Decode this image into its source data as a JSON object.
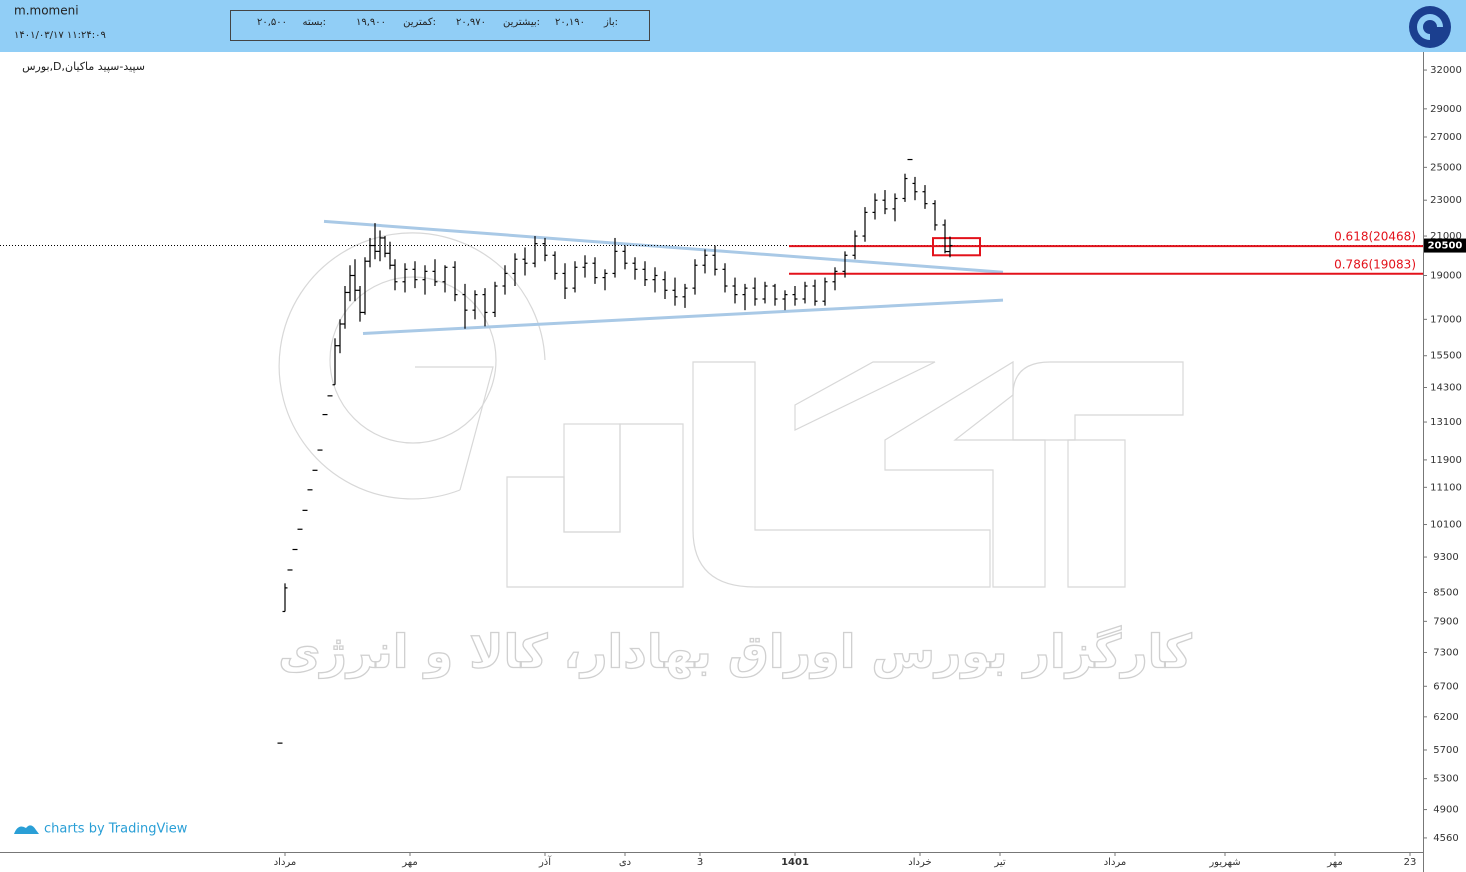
{
  "header": {
    "user": "m.momeni",
    "datetime": "۱۴۰۱/۰۳/۱۷ ۱۱:۲۴:۰۹",
    "open_label": "باز:",
    "open_value": "۲۰,۱۹۰",
    "high_label": "بیشترین:",
    "high_value": "۲۰,۹۷۰",
    "low_label": "کمترین:",
    "low_value": "۱۹,۹۰۰",
    "close_label": "بسته:",
    "close_value": "۲۰,۵۰۰"
  },
  "footer": {
    "credit": "charts by TradingView"
  },
  "chart_data": {
    "type": "ohlc",
    "symbol": "بورس,D,سپید-سپید ماکیان",
    "watermark": "کارگزار بورس اوراق بهادار، کالا و انرژی",
    "log_scale": true,
    "ylim": [
      4400,
      33500
    ],
    "yticks": [
      32000,
      29000,
      27000,
      25000,
      23000,
      21000,
      19000,
      17000,
      15500,
      14300,
      13100,
      11900,
      11100,
      10100,
      9300,
      8500,
      7900,
      7300,
      6700,
      6200,
      5700,
      5300,
      4900,
      4560
    ],
    "xlim": [
      -57,
      227.6
    ],
    "xticks": [
      {
        "value": 0,
        "label": "مرداد"
      },
      {
        "value": 25,
        "label": "مهر"
      },
      {
        "value": 52,
        "label": "آذر"
      },
      {
        "value": 68,
        "label": "دی"
      },
      {
        "value": 83,
        "label": "3"
      },
      {
        "value": 102,
        "label": "1401"
      },
      {
        "value": 127,
        "label": "خرداد"
      },
      {
        "value": 143,
        "label": "تیر"
      },
      {
        "value": 166,
        "label": "مرداد"
      },
      {
        "value": 188,
        "label": "شهریور"
      },
      {
        "value": 210,
        "label": "مهر"
      },
      {
        "value": 225,
        "label": "23"
      }
    ],
    "series": [
      {
        "color": "#000000",
        "x": [
          -1,
          0,
          1,
          2,
          3,
          4,
          5,
          6,
          7,
          8,
          9,
          10,
          11,
          12,
          13,
          14,
          15,
          16,
          17,
          18,
          19,
          20,
          21,
          22,
          24,
          26,
          28,
          30,
          32,
          34,
          36,
          38,
          40,
          42,
          44,
          46,
          48,
          50,
          52,
          54,
          56,
          58,
          60,
          62,
          64,
          66,
          68,
          70,
          72,
          74,
          76,
          78,
          80,
          82,
          84,
          86,
          88,
          90,
          92,
          94,
          96,
          98,
          100,
          102,
          104,
          106,
          108,
          110,
          112,
          114,
          116,
          118,
          120,
          122,
          124,
          125,
          126,
          128,
          130,
          132,
          133
        ],
        "open": [
          5800,
          8100,
          9000,
          9480,
          9980,
          10470,
          11030,
          11590,
          12200,
          13350,
          14000,
          14400,
          15900,
          16800,
          18200,
          19000,
          18300,
          17300,
          19700,
          20500,
          20200,
          20900,
          20100,
          19500,
          18700,
          19300,
          18800,
          19200,
          18700,
          19400,
          18100,
          17400,
          18100,
          17300,
          18500,
          19100,
          19800,
          19600,
          20600,
          20000,
          19100,
          18400,
          19400,
          19600,
          18900,
          19100,
          20200,
          19600,
          19300,
          18800,
          18800,
          18300,
          18000,
          18400,
          19500,
          20000,
          19300,
          18500,
          18100,
          18400,
          17900,
          18500,
          17900,
          18100,
          17900,
          18500,
          17800,
          18700,
          19200,
          20000,
          21000,
          22300,
          23000,
          22500,
          23100,
          25500,
          24000,
          23500,
          22800,
          21600,
          20190
        ],
        "high": [
          5800,
          8700,
          9000,
          9480,
          9980,
          10470,
          11030,
          11590,
          12200,
          13350,
          14000,
          16200,
          17000,
          18500,
          19500,
          19800,
          18500,
          19900,
          20900,
          21700,
          21300,
          21000,
          20700,
          19800,
          19600,
          19700,
          19500,
          19800,
          19500,
          19700,
          18600,
          18300,
          18400,
          18700,
          19500,
          20100,
          20400,
          21000,
          20900,
          20200,
          19600,
          19700,
          20000,
          19900,
          19300,
          20900,
          20500,
          19900,
          19700,
          19400,
          19200,
          18900,
          18600,
          19800,
          20300,
          20500,
          19600,
          18900,
          18600,
          18900,
          18700,
          18600,
          18300,
          18500,
          18700,
          18800,
          18900,
          19400,
          20200,
          21300,
          22600,
          23400,
          23600,
          23400,
          24600,
          25500,
          24400,
          23900,
          23000,
          21900,
          20970
        ],
        "low": [
          5800,
          8100,
          9000,
          9480,
          9980,
          10470,
          11030,
          11590,
          12200,
          13350,
          14000,
          14400,
          15600,
          16600,
          17800,
          17800,
          16900,
          17200,
          19400,
          19800,
          19700,
          19900,
          19300,
          18300,
          18200,
          18400,
          18100,
          18500,
          18200,
          17800,
          16600,
          17000,
          16700,
          17100,
          18100,
          18500,
          19000,
          19400,
          19700,
          18800,
          17900,
          18200,
          18900,
          18600,
          18300,
          18900,
          19300,
          18800,
          18500,
          18200,
          17900,
          17600,
          17500,
          18100,
          19100,
          19000,
          18200,
          17700,
          17400,
          17600,
          17700,
          17600,
          17400,
          17600,
          17700,
          17600,
          17600,
          18300,
          18900,
          19800,
          20700,
          21900,
          22200,
          21800,
          22900,
          25500,
          23000,
          22500,
          21300,
          20100,
          19900
        ],
        "close": [
          5800,
          8600,
          9000,
          9480,
          9980,
          10470,
          11030,
          11590,
          12200,
          13350,
          14000,
          15900,
          16800,
          18200,
          19000,
          18300,
          17300,
          19700,
          20500,
          20200,
          20900,
          20100,
          19500,
          18700,
          19300,
          18800,
          19200,
          18700,
          19400,
          18100,
          17400,
          18100,
          17300,
          18500,
          19100,
          19800,
          19600,
          20600,
          20000,
          19100,
          18400,
          19400,
          19600,
          18900,
          19100,
          20200,
          19600,
          19300,
          18800,
          19000,
          18300,
          18000,
          18400,
          19500,
          20000,
          19300,
          18500,
          18100,
          18400,
          17900,
          18500,
          17900,
          18100,
          17900,
          18500,
          17800,
          18700,
          19200,
          20000,
          21000,
          22300,
          23000,
          22500,
          23100,
          24300,
          25500,
          23500,
          22800,
          21600,
          20190,
          20500
        ]
      }
    ],
    "trendlines": {
      "color": "#a9c9e6",
      "lines": [
        {
          "x": [
            7.8,
            143.6
          ],
          "y": [
            21800,
            19160
          ]
        },
        {
          "x": [
            15.6,
            143.6
          ],
          "y": [
            16400,
            17850
          ]
        }
      ]
    },
    "fib": {
      "color": "#e3121b",
      "x_start": 100.8,
      "levels": [
        20468,
        19083
      ],
      "value_labels": [
        "0.618(20468)",
        "0.786(19083)"
      ]
    },
    "box": {
      "color": "#e3121b",
      "x": [
        129.6,
        139
      ],
      "y": [
        20890,
        20000
      ]
    },
    "last_price": 20500
  }
}
